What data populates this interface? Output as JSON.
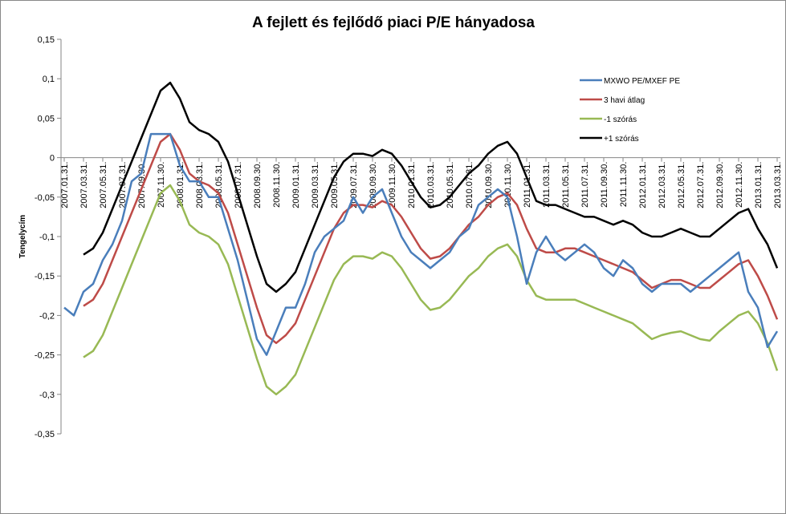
{
  "chart_data": {
    "type": "line",
    "title": "A fejlett és fejlődő piaci P/E hányadosa",
    "y_label": "Tengelycím",
    "categories": [
      "2007.01.31.",
      null,
      "2007.03.31.",
      null,
      "2007.05.31.",
      null,
      "2007.07.31.",
      null,
      "2007.09.30.",
      null,
      "2007.11.30.",
      null,
      "2008.01.31.",
      null,
      "2008.03.31.",
      null,
      "2008.05.31.",
      null,
      "2008.07.31.",
      null,
      "2008.09.30.",
      null,
      "2008.11.30.",
      null,
      "2009.01.31.",
      null,
      "2009.03.31.",
      null,
      "2009.05.31.",
      null,
      "2009.07.31.",
      null,
      "2009.09.30.",
      null,
      "2009.11.30.",
      null,
      "2010.01.31.",
      null,
      "2010.03.31.",
      null,
      "2010.05.31.",
      null,
      "2010.07.31.",
      null,
      "2010.09.30.",
      null,
      "2010.11.30.",
      null,
      "2011.01.31.",
      null,
      "2011.03.31.",
      null,
      "2011.05.31.",
      null,
      "2011.07.31.",
      null,
      "2011.09.30.",
      null,
      "2011.11.30.",
      null,
      "2012.01.31.",
      null,
      "2012.03.31.",
      null,
      "2012.05.31.",
      null,
      "2012.07.31.",
      null,
      "2012.09.30.",
      null,
      "2012.11.30.",
      null,
      "2013.01.31.",
      null,
      "2013.03.31."
    ],
    "series": [
      {
        "name": "MXWO PE/MXEF  PE",
        "color": "#4a7ebb",
        "values": [
          -0.19,
          -0.2,
          -0.17,
          -0.16,
          -0.13,
          -0.11,
          -0.08,
          -0.03,
          -0.02,
          0.03,
          0.03,
          0.03,
          -0.01,
          -0.03,
          -0.03,
          -0.05,
          -0.05,
          -0.09,
          -0.13,
          -0.18,
          -0.23,
          -0.25,
          -0.22,
          -0.19,
          -0.19,
          -0.16,
          -0.12,
          -0.1,
          -0.09,
          -0.08,
          -0.05,
          -0.07,
          -0.05,
          -0.04,
          -0.07,
          -0.1,
          -0.12,
          -0.13,
          -0.14,
          -0.13,
          -0.12,
          -0.1,
          -0.09,
          -0.06,
          -0.05,
          -0.04,
          -0.05,
          -0.1,
          -0.16,
          -0.12,
          -0.1,
          -0.12,
          -0.13,
          -0.12,
          -0.11,
          -0.12,
          -0.14,
          -0.15,
          -0.13,
          -0.14,
          -0.16,
          -0.17,
          -0.16,
          -0.16,
          -0.16,
          -0.17,
          -0.16,
          -0.15,
          -0.14,
          -0.13,
          -0.12,
          -0.17,
          -0.19,
          -0.24,
          -0.22
        ]
      },
      {
        "name": "3 havi átlag",
        "color": "#be4b48",
        "values": [
          null,
          null,
          -0.188,
          -0.18,
          -0.16,
          -0.13,
          -0.1,
          -0.07,
          -0.04,
          -0.01,
          0.02,
          0.03,
          0.01,
          -0.02,
          -0.03,
          -0.035,
          -0.045,
          -0.07,
          -0.11,
          -0.15,
          -0.19,
          -0.225,
          -0.235,
          -0.225,
          -0.21,
          -0.18,
          -0.15,
          -0.12,
          -0.09,
          -0.07,
          -0.06,
          -0.06,
          -0.063,
          -0.055,
          -0.06,
          -0.075,
          -0.095,
          -0.115,
          -0.128,
          -0.125,
          -0.115,
          -0.1,
          -0.085,
          -0.075,
          -0.06,
          -0.05,
          -0.045,
          -0.06,
          -0.09,
          -0.115,
          -0.12,
          -0.12,
          -0.115,
          -0.115,
          -0.12,
          -0.125,
          -0.13,
          -0.135,
          -0.14,
          -0.145,
          -0.155,
          -0.165,
          -0.16,
          -0.155,
          -0.155,
          -0.16,
          -0.165,
          -0.165,
          -0.155,
          -0.145,
          -0.135,
          -0.13,
          -0.15,
          -0.175,
          -0.205
        ]
      },
      {
        "name": "-1 szórás",
        "color": "#98b954",
        "values": [
          null,
          null,
          -0.253,
          -0.245,
          -0.225,
          -0.195,
          -0.165,
          -0.135,
          -0.105,
          -0.075,
          -0.045,
          -0.035,
          -0.055,
          -0.085,
          -0.095,
          -0.1,
          -0.11,
          -0.135,
          -0.175,
          -0.215,
          -0.255,
          -0.29,
          -0.3,
          -0.29,
          -0.275,
          -0.245,
          -0.215,
          -0.185,
          -0.155,
          -0.135,
          -0.125,
          -0.125,
          -0.128,
          -0.12,
          -0.125,
          -0.14,
          -0.16,
          -0.18,
          -0.193,
          -0.19,
          -0.18,
          -0.165,
          -0.15,
          -0.14,
          -0.125,
          -0.115,
          -0.11,
          -0.125,
          -0.155,
          -0.175,
          -0.18,
          -0.18,
          -0.18,
          -0.18,
          -0.185,
          -0.19,
          -0.195,
          -0.2,
          -0.205,
          -0.21,
          -0.22,
          -0.23,
          -0.225,
          -0.222,
          -0.22,
          -0.225,
          -0.23,
          -0.232,
          -0.22,
          -0.21,
          -0.2,
          -0.195,
          -0.21,
          -0.235,
          -0.27
        ]
      },
      {
        "name": "+1 szórás",
        "color": "#000000",
        "values": [
          null,
          null,
          -0.123,
          -0.115,
          -0.095,
          -0.065,
          -0.035,
          -0.005,
          0.025,
          0.055,
          0.085,
          0.095,
          0.075,
          0.045,
          0.035,
          0.03,
          0.02,
          -0.005,
          -0.045,
          -0.085,
          -0.125,
          -0.16,
          -0.17,
          -0.16,
          -0.145,
          -0.115,
          -0.085,
          -0.055,
          -0.025,
          -0.005,
          0.005,
          0.005,
          0.002,
          0.01,
          0.005,
          -0.01,
          -0.03,
          -0.05,
          -0.063,
          -0.06,
          -0.05,
          -0.035,
          -0.02,
          -0.01,
          0.005,
          0.015,
          0.02,
          0.005,
          -0.025,
          -0.055,
          -0.06,
          -0.06,
          -0.065,
          -0.07,
          -0.075,
          -0.075,
          -0.08,
          -0.085,
          -0.08,
          -0.085,
          -0.095,
          -0.1,
          -0.1,
          -0.095,
          -0.09,
          -0.095,
          -0.1,
          -0.1,
          -0.09,
          -0.08,
          -0.07,
          -0.065,
          -0.09,
          -0.11,
          -0.14
        ]
      }
    ],
    "ylim": [
      -0.35,
      0.15
    ],
    "yticks": [
      {
        "value": 0.15,
        "label": "0,15"
      },
      {
        "value": 0.1,
        "label": "0,1"
      },
      {
        "value": 0.05,
        "label": "0,05"
      },
      0,
      {
        "value": -0.05,
        "label": "-0,05"
      },
      {
        "value": -0.1,
        "label": "-0,1"
      },
      {
        "value": -0.15,
        "label": "-0,15"
      },
      {
        "value": -0.2,
        "label": "-0,2"
      },
      {
        "value": -0.25,
        "label": "-0,25"
      },
      {
        "value": -0.3,
        "label": "-0,3"
      },
      {
        "value": -0.35,
        "label": "-0,35"
      }
    ],
    "legend": "top-right"
  }
}
